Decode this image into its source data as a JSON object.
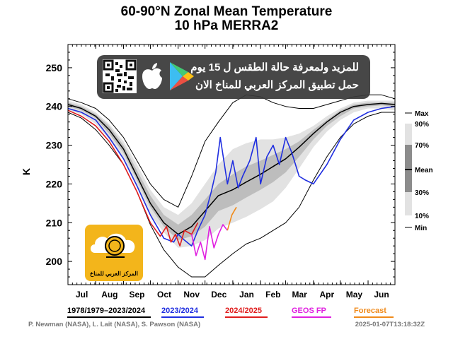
{
  "title": "60-90°N Zonal Mean Temperature",
  "subtitle": "10 hPa    MERRA2",
  "banner": {
    "line1": "للمزيد ولمعرفة حالة الطقس ل 15 يوم",
    "line2": "حمل تطبيق المركز العربي للمناخ الان",
    "icons": [
      "qr-code-icon",
      "apple-icon",
      "google-play-icon"
    ]
  },
  "logo": {
    "text": "المركز العربي للمناخ"
  },
  "footer": {
    "credit": "P. Newman (NASA), L. Lait (NASA), S. Pawson (NASA)",
    "timestamp": "2025-01-07T13:18:32Z"
  },
  "colors": {
    "climatology": "#000000",
    "series_2023": "#1f2ee0",
    "series_2024": "#e01d1d",
    "geos_fp": "#e020e0",
    "forecast": "#f08a1a",
    "band_outer": "#e2e2e2",
    "band_30_70": "#bdbdbd",
    "band_inner": "#8c8c8c"
  },
  "chart_data": {
    "type": "line",
    "ylabel": "K",
    "ylim": [
      194,
      256
    ],
    "yticks": [
      200,
      210,
      220,
      230,
      240,
      250
    ],
    "xlim": [
      0,
      365
    ],
    "months": [
      "Jul",
      "Aug",
      "Sep",
      "Oct",
      "Nov",
      "Dec",
      "Jan",
      "Feb",
      "Mar",
      "Apr",
      "May",
      "Jun"
    ],
    "month_days": [
      0,
      31,
      62,
      92,
      123,
      153,
      184,
      215,
      243,
      274,
      304,
      335,
      365
    ],
    "legend_labels": [
      "1978/1979–2023/2024",
      "2023/2024",
      "2024/2025",
      "GEOS FP",
      "Forecast"
    ],
    "percentile_key": [
      "Max",
      "90%",
      "70%",
      "Mean",
      "30%",
      "10%",
      "Min"
    ],
    "climatology": {
      "x": [
        0,
        15,
        31,
        46,
        62,
        77,
        92,
        107,
        123,
        138,
        153,
        168,
        184,
        199,
        215,
        229,
        243,
        258,
        274,
        289,
        304,
        319,
        335,
        350,
        365
      ],
      "mean": [
        240.5,
        239.5,
        237.5,
        234,
        229,
        222,
        215,
        210,
        207,
        209,
        213,
        217,
        218.5,
        220.5,
        222.5,
        224.5,
        226.5,
        229.5,
        233,
        236,
        238.5,
        240,
        240.5,
        240.8,
        240.5
      ],
      "max": [
        242,
        241,
        239.5,
        236.5,
        232,
        226,
        220,
        216,
        214,
        222,
        231,
        236,
        241,
        243,
        242.5,
        241,
        240,
        239.5,
        239.5,
        240.5,
        241.5,
        242.5,
        243,
        243,
        242
      ],
      "p90": [
        241.5,
        240.5,
        238.5,
        235.5,
        231,
        225,
        218.5,
        214,
        212,
        215,
        220,
        225,
        229,
        230.5,
        231.5,
        231.5,
        232,
        233,
        235,
        237.5,
        239.5,
        241,
        241.5,
        241.5,
        241.5
      ],
      "p70": [
        241,
        240,
        238,
        235,
        230,
        223.5,
        217,
        212,
        209.5,
        212,
        216,
        220,
        222.5,
        224.5,
        226,
        227.5,
        229,
        231,
        234,
        236.5,
        239,
        240.5,
        241,
        241,
        241
      ],
      "p30": [
        240,
        239,
        237,
        233,
        228,
        221,
        214,
        209,
        205.5,
        206.5,
        209,
        213,
        214.5,
        216.5,
        218.5,
        220.5,
        223,
        227,
        231.5,
        235,
        237.5,
        239.5,
        240,
        240.3,
        240
      ],
      "p10": [
        239,
        238,
        235.5,
        231.5,
        226.5,
        219.5,
        212,
        207.5,
        203.5,
        204,
        205.5,
        208.5,
        210,
        211.5,
        213.5,
        215.5,
        219,
        224,
        229.5,
        233.5,
        236.5,
        238.5,
        239.5,
        239.5,
        239
      ],
      "min": [
        238.5,
        237,
        234,
        230,
        225,
        218,
        209.5,
        203,
        198.5,
        196,
        196,
        199,
        202,
        204.5,
        206,
        208,
        210,
        214,
        221,
        227,
        232,
        235.5,
        237.5,
        238.5,
        238.5
      ]
    },
    "series": [
      {
        "name": "2023/2024",
        "x": [
          0,
          15,
          31,
          46,
          62,
          77,
          92,
          107,
          118,
          123,
          130,
          138,
          145,
          153,
          160,
          165,
          170,
          178,
          184,
          190,
          195,
          203,
          210,
          215,
          222,
          229,
          236,
          243,
          250,
          258,
          265,
          274,
          289,
          304,
          319,
          335,
          350,
          365
        ],
        "y": [
          239.5,
          238.5,
          236.5,
          232,
          226.5,
          219.5,
          212,
          206,
          205,
          207,
          205.5,
          204,
          208,
          212,
          218,
          223,
          232,
          220,
          226,
          219,
          222,
          226,
          232,
          220,
          227,
          230,
          225,
          232,
          228,
          222,
          221,
          220,
          225,
          231.5,
          236.5,
          238.5,
          239.5,
          240
        ]
      },
      {
        "name": "2024/2025",
        "x": [
          0,
          15,
          31,
          46,
          62,
          77,
          92,
          103,
          110,
          115,
          120,
          125,
          130,
          138,
          145
        ],
        "y": [
          239,
          237.5,
          235,
          231,
          225,
          218,
          210,
          206.5,
          209,
          205,
          207,
          204,
          208,
          207,
          210
        ]
      },
      {
        "name": "GEOS FP",
        "x": [
          138,
          143,
          148,
          153,
          158,
          163,
          168,
          173,
          178
        ],
        "y": [
          207,
          201.5,
          205,
          200.5,
          209,
          203.5,
          207,
          209.5,
          208
        ]
      },
      {
        "name": "Forecast",
        "x": [
          178,
          183,
          188
        ],
        "y": [
          208,
          212,
          214
        ]
      }
    ]
  }
}
